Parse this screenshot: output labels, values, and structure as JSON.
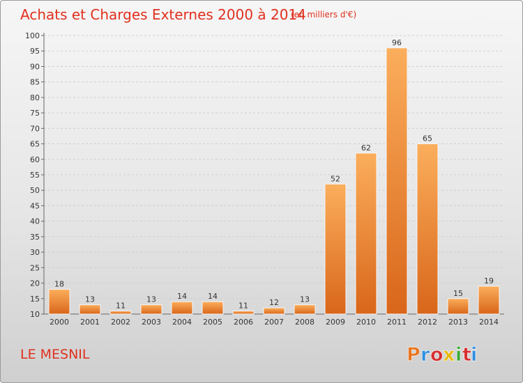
{
  "chart_data": {
    "type": "bar",
    "title": "Achats et Charges Externes 2000 à 2014",
    "subtitle": "(en milliers d'€)",
    "categories": [
      "2000",
      "2001",
      "2002",
      "2003",
      "2004",
      "2005",
      "2006",
      "2007",
      "2008",
      "2009",
      "2010",
      "2011",
      "2012",
      "2013",
      "2014"
    ],
    "values": [
      18,
      13,
      11,
      13,
      14,
      14,
      11,
      12,
      13,
      52,
      62,
      96,
      65,
      15,
      19
    ],
    "ylim": [
      10,
      100
    ],
    "yticks": [
      "10",
      "15",
      "20",
      "25",
      "30",
      "35",
      "40",
      "45",
      "50",
      "55",
      "60",
      "65",
      "70",
      "75",
      "80",
      "85",
      "90",
      "95",
      "100"
    ],
    "grid": true,
    "bar_color": "#f28e2b"
  },
  "footer": {
    "commune": "LE MESNIL",
    "logo": "Proxiti",
    "logo_colors": [
      "#e87722",
      "#2e8ede",
      "#d62f2f",
      "#e8b800",
      "#3aaa35",
      "#d62f2f",
      "#2e8ede"
    ]
  }
}
